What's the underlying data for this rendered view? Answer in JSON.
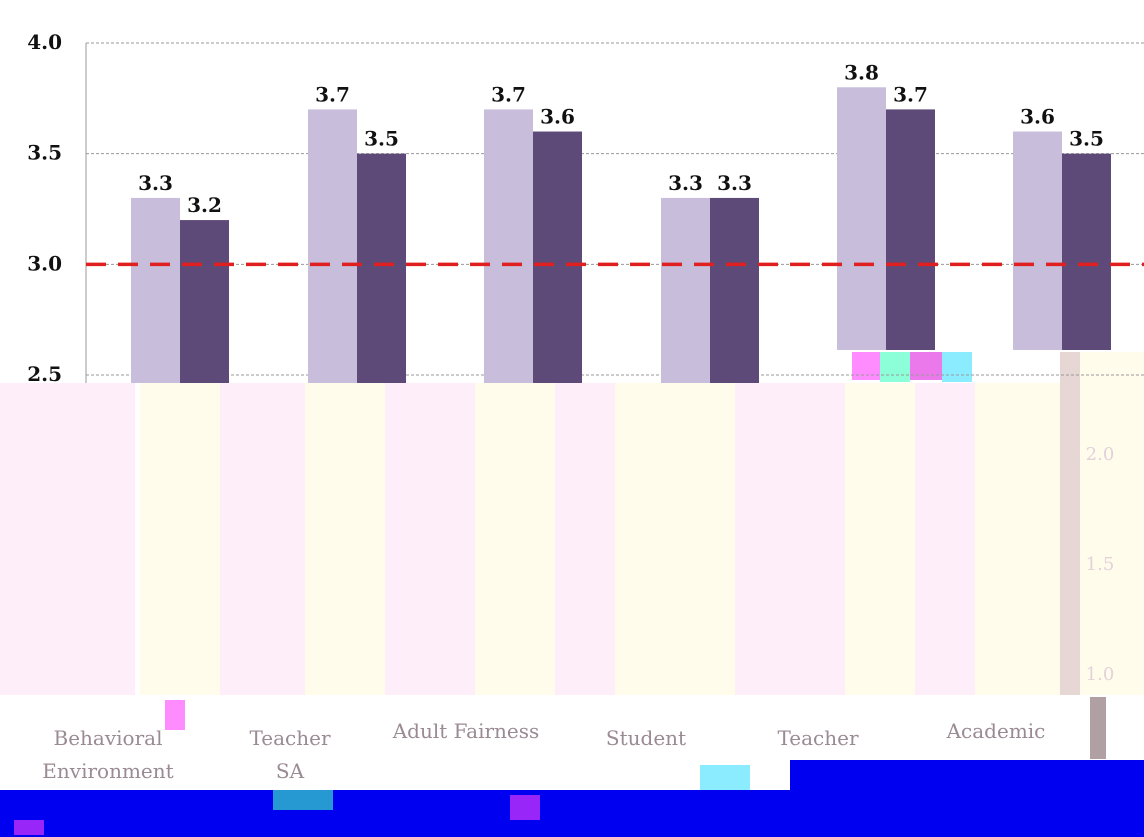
{
  "chart_data": {
    "type": "bar",
    "categories": [
      "Behavioral Environment",
      "Teacher SA",
      "Adult Fairness",
      "Student",
      "Teacher",
      "Academic"
    ],
    "category_lines": [
      [
        "Behavioral",
        "Environment"
      ],
      [
        "Teacher",
        "SA"
      ],
      [
        "Adult Fairness",
        ""
      ],
      [
        "Student",
        ""
      ],
      [
        "Teacher",
        ""
      ],
      [
        "Academic",
        ""
      ]
    ],
    "series": [
      {
        "values": [
          3.3,
          3.7,
          3.7,
          3.3,
          3.8,
          3.6
        ],
        "color": "#c8bedc"
      },
      {
        "values": [
          3.2,
          3.5,
          3.6,
          3.3,
          3.7,
          3.5
        ],
        "color": "#5e4a78"
      }
    ],
    "value_labels": [
      [
        "3.3",
        "3.7",
        "3.7",
        "3.3",
        "3.8",
        "3.6"
      ],
      [
        "3.2",
        "3.5",
        "3.6",
        "3.3",
        "3.7",
        "3.5"
      ]
    ],
    "y_ticks": [
      "4.0",
      "3.5",
      "3.0",
      "2.5"
    ],
    "ghost_ticks": [
      "2.0",
      "1.5",
      "1.0"
    ],
    "ylim": [
      2.5,
      4.0
    ],
    "reference_line": {
      "value": 3.0,
      "color": "#e02020",
      "style": "dashed"
    },
    "grid": true,
    "colors": {
      "gridline": "#999999",
      "artifact_blue": "#0000f0",
      "artifact_cream": "#fffcec",
      "artifact_pink": "#fdeefa",
      "artifact_stripe": "#b0a0a4"
    }
  }
}
